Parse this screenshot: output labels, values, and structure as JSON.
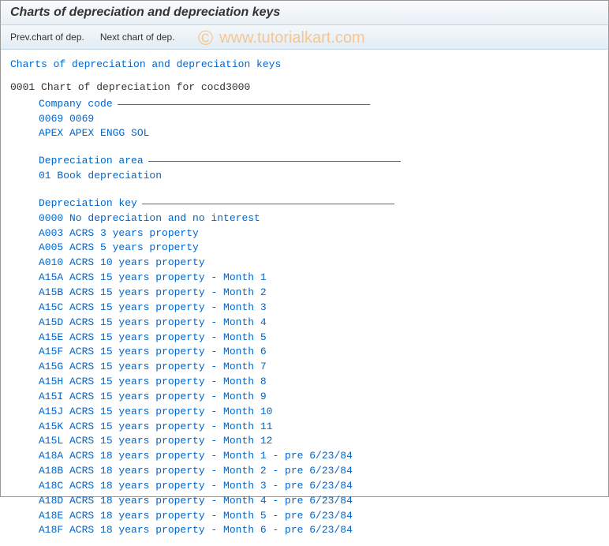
{
  "title": "Charts of depreciation and depreciation keys",
  "toolbar": {
    "prev": "Prev.chart of dep.",
    "next": "Next chart of dep."
  },
  "watermark": {
    "symbol": "©",
    "text": "www.tutorialkart.com"
  },
  "heading": "Charts of depreciation and depreciation keys",
  "chart": {
    "code": "0001",
    "desc": "Chart of depreciation for cocd3000"
  },
  "company": {
    "header": "Company code",
    "line1": "0069 0069",
    "line2": "APEX APEX ENGG SOL"
  },
  "deparea": {
    "header": "Depreciation area",
    "line1": "01 Book depreciation"
  },
  "depkey": {
    "header": "Depreciation key",
    "items": [
      "0000 No depreciation and no interest",
      "A003 ACRS 3 years property",
      "A005 ACRS 5 years property",
      "A010 ACRS 10 years property",
      "A15A ACRS 15 years property - Month 1",
      "A15B ACRS 15 years property - Month 2",
      "A15C ACRS 15 years property - Month 3",
      "A15D ACRS 15 years property - Month 4",
      "A15E ACRS 15 years property - Month 5",
      "A15F ACRS 15 years property - Month 6",
      "A15G ACRS 15 years property - Month 7",
      "A15H ACRS 15 years property - Month 8",
      "A15I ACRS 15 years property - Month 9",
      "A15J ACRS 15 years property - Month 10",
      "A15K ACRS 15 years property - Month 11",
      "A15L ACRS 15 years property - Month 12",
      "A18A ACRS 18 years property - Month 1 - pre 6/23/84",
      "A18B ACRS 18 years property - Month 2 - pre 6/23/84",
      "A18C ACRS 18 years property - Month 3 - pre 6/23/84",
      "A18D ACRS 18 years property - Month 4 - pre 6/23/84",
      "A18E ACRS 18 years property - Month 5 - pre 6/23/84",
      "A18F ACRS 18 years property - Month 6 - pre 6/23/84"
    ]
  }
}
